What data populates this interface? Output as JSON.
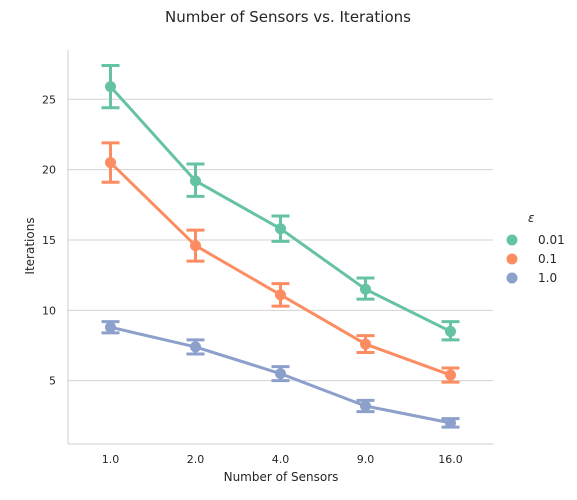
{
  "chart_data": {
    "type": "line",
    "title": "Number of Sensors vs. Iterations",
    "xlabel": "Number of Sensors",
    "ylabel": "Iterations",
    "categories": [
      "1.0",
      "2.0",
      "4.0",
      "9.0",
      "16.0"
    ],
    "yticks": [
      5,
      10,
      15,
      20,
      25
    ],
    "ylim": [
      0.5,
      28.5
    ],
    "grid": "horizontal",
    "legend": {
      "title": "ε",
      "placement": "right"
    },
    "series": [
      {
        "name": "0.01",
        "color": "#66c2a5",
        "values": [
          25.9,
          19.2,
          15.8,
          11.5,
          8.5
        ],
        "err_low": [
          24.4,
          18.1,
          14.9,
          10.8,
          7.9
        ],
        "err_high": [
          27.4,
          20.4,
          16.7,
          12.3,
          9.2
        ]
      },
      {
        "name": "0.1",
        "color": "#fc8d62",
        "values": [
          20.5,
          14.6,
          11.1,
          7.6,
          5.4
        ],
        "err_low": [
          19.1,
          13.5,
          10.3,
          7.0,
          4.9
        ],
        "err_high": [
          21.9,
          15.7,
          11.9,
          8.2,
          5.9
        ]
      },
      {
        "name": "1.0",
        "color": "#8da0cb",
        "values": [
          8.8,
          7.4,
          5.5,
          3.2,
          2.0
        ],
        "err_low": [
          8.4,
          6.9,
          5.0,
          2.8,
          1.7
        ],
        "err_high": [
          9.2,
          7.9,
          6.0,
          3.6,
          2.3
        ]
      }
    ]
  }
}
